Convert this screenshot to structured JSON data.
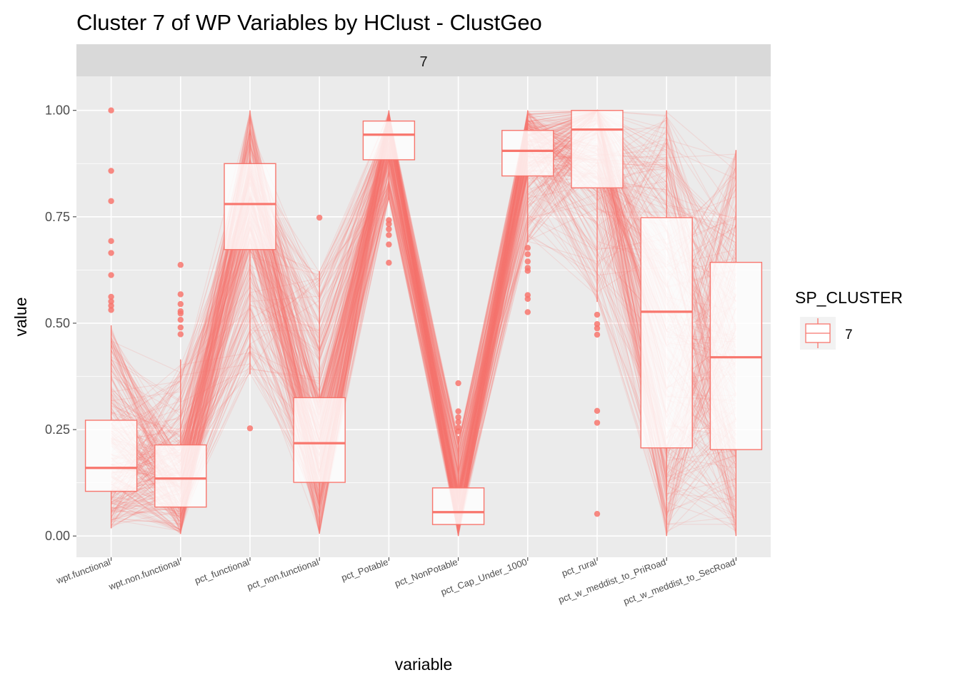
{
  "chart_data": {
    "type": "boxplot",
    "title": "Cluster 7 of WP Variables by HClust - ClustGeo",
    "facet_label": "7",
    "xlabel": "variable",
    "ylabel": "value",
    "ylim": [
      -0.05,
      1.08
    ],
    "yticks": [
      {
        "value": 0.0,
        "label": "0.00"
      },
      {
        "value": 0.25,
        "label": "0.25"
      },
      {
        "value": 0.5,
        "label": "0.50"
      },
      {
        "value": 0.75,
        "label": "0.75"
      },
      {
        "value": 1.0,
        "label": "1.00"
      }
    ],
    "categories": [
      "wpt.functional",
      "wpt.non.functional",
      "pct_functional",
      "pct_non.functional",
      "pct_Potable",
      "pct_NonPotable",
      "pct_Cap_Under_1000",
      "pct_rural",
      "pct_w_meddist_to_PriRoad",
      "pct_w_meddist_to_SecRoad"
    ],
    "boxes": [
      {
        "q1": 0.105,
        "median": 0.16,
        "q3": 0.272,
        "whisker_low": 0.018,
        "whisker_high": 0.495,
        "outliers": [
          1.0,
          0.858,
          0.787,
          0.693,
          0.665,
          0.613,
          0.562,
          0.551,
          0.541,
          0.531
        ]
      },
      {
        "q1": 0.068,
        "median": 0.135,
        "q3": 0.214,
        "whisker_low": 0.005,
        "whisker_high": 0.415,
        "outliers": [
          0.637,
          0.568,
          0.545,
          0.528,
          0.523,
          0.508,
          0.49,
          0.474
        ]
      },
      {
        "q1": 0.673,
        "median": 0.78,
        "q3": 0.875,
        "whisker_low": 0.38,
        "whisker_high": 1.0,
        "outliers": [
          0.253
        ]
      },
      {
        "q1": 0.126,
        "median": 0.218,
        "q3": 0.325,
        "whisker_low": 0.005,
        "whisker_high": 0.622,
        "outliers": [
          0.748
        ]
      },
      {
        "q1": 0.884,
        "median": 0.943,
        "q3": 0.975,
        "whisker_low": 0.79,
        "whisker_high": 1.0,
        "outliers": [
          0.742,
          0.733,
          0.721,
          0.707,
          0.685,
          0.642
        ]
      },
      {
        "q1": 0.027,
        "median": 0.056,
        "q3": 0.113,
        "whisker_low": 0.0,
        "whisker_high": 0.235,
        "outliers": [
          0.359,
          0.293,
          0.279,
          0.268,
          0.255,
          0.246
        ]
      },
      {
        "q1": 0.846,
        "median": 0.905,
        "q3": 0.953,
        "whisker_low": 0.69,
        "whisker_high": 1.0,
        "outliers": [
          0.677,
          0.662,
          0.645,
          0.63,
          0.623,
          0.566,
          0.557,
          0.526
        ]
      },
      {
        "q1": 0.818,
        "median": 0.955,
        "q3": 1.0,
        "whisker_low": 0.55,
        "whisker_high": 1.0,
        "outliers": [
          0.52,
          0.498,
          0.488,
          0.473,
          0.294,
          0.266,
          0.052
        ]
      },
      {
        "q1": 0.207,
        "median": 0.527,
        "q3": 0.748,
        "whisker_low": 0.0,
        "whisker_high": 1.0,
        "outliers": []
      },
      {
        "q1": 0.203,
        "median": 0.42,
        "q3": 0.643,
        "whisker_low": 0.0,
        "whisker_high": 0.907,
        "outliers": []
      }
    ],
    "n_parallel_lines": 300,
    "legend": {
      "title": "SP_CLUSTER",
      "entries": [
        {
          "label": "7",
          "color": "#F8766D"
        }
      ],
      "position": "right"
    },
    "colors": {
      "series": "#F8766D",
      "panel": "#EBEBEB",
      "strip": "#D9D9D9",
      "grid": "#FFFFFF",
      "box_fill": "#FFFFFF"
    }
  }
}
